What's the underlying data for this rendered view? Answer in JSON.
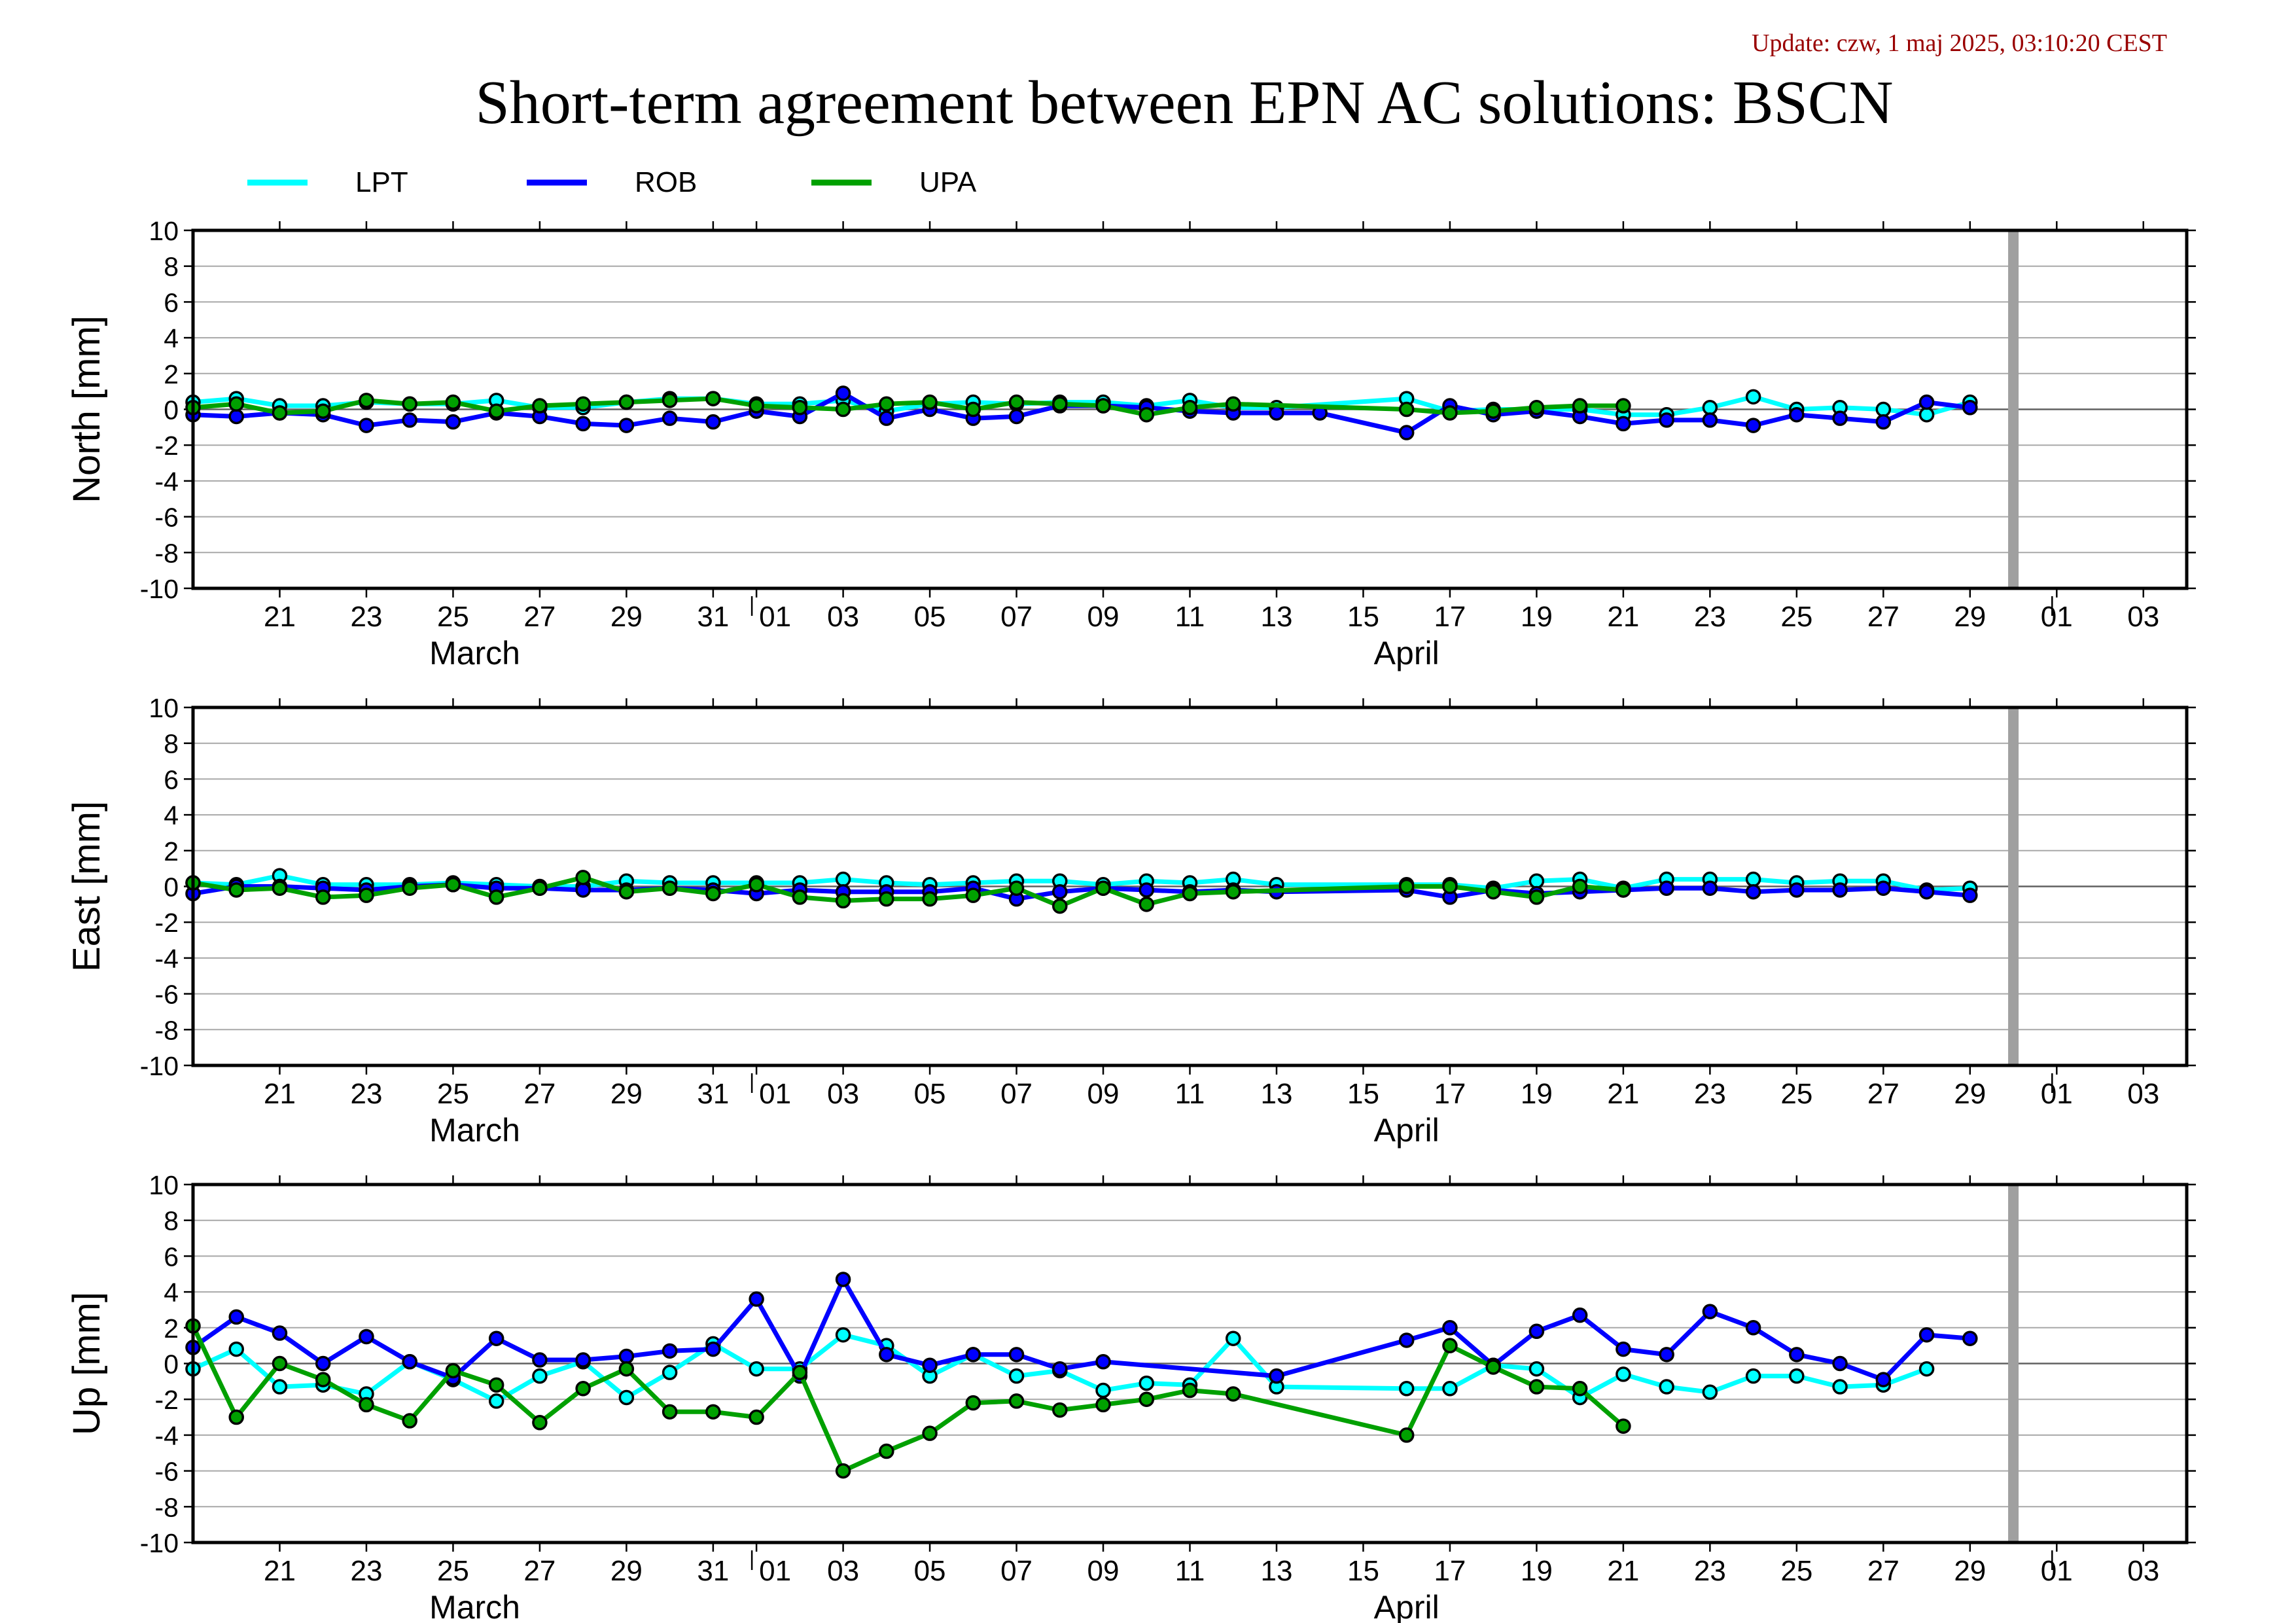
{
  "update_text": "Update: czw, 1 maj 2025, 03:10:20 CEST",
  "title": "Short-term agreement between EPN AC solutions: BSCN",
  "colors": {
    "LPT": "#00ffff",
    "ROB": "#0000ff",
    "UPA": "#00a000",
    "current_day_marker": "#a0a0a0",
    "update_text": "#990000"
  },
  "chart_data": {
    "type": "line",
    "legend": {
      "placement": "top-left",
      "entries": [
        "LPT",
        "ROB",
        "UPA"
      ]
    },
    "x_axis": {
      "range": [
        "2025-03-19",
        "2025-05-04"
      ],
      "tick_dates": [
        "2025-03-21",
        "2025-03-23",
        "2025-03-25",
        "2025-03-27",
        "2025-03-29",
        "2025-03-31",
        "2025-04-01",
        "2025-04-03",
        "2025-04-05",
        "2025-04-07",
        "2025-04-09",
        "2025-04-11",
        "2025-04-13",
        "2025-04-15",
        "2025-04-17",
        "2025-04-19",
        "2025-04-21",
        "2025-04-23",
        "2025-04-25",
        "2025-04-27",
        "2025-04-29",
        "2025-05-01",
        "2025-05-03"
      ],
      "tick_labels": [
        "21",
        "23",
        "25",
        "27",
        "29",
        "31",
        "01",
        "03",
        "05",
        "07",
        "09",
        "11",
        "13",
        "15",
        "17",
        "19",
        "21",
        "23",
        "25",
        "27",
        "29",
        "01",
        "03"
      ],
      "month_boundaries": [
        "2025-04-01",
        "2025-05-01"
      ],
      "month_labels": [
        {
          "text": "March",
          "date": "2025-03-25T12:00"
        },
        {
          "text": "April",
          "date": "2025-04-16"
        }
      ],
      "current_day_marker": "2025-04-30"
    },
    "dates": [
      "2025-03-19",
      "2025-03-20",
      "2025-03-21",
      "2025-03-22",
      "2025-03-23",
      "2025-03-24",
      "2025-03-25",
      "2025-03-26",
      "2025-03-27",
      "2025-03-28",
      "2025-03-29",
      "2025-03-30",
      "2025-03-31",
      "2025-04-01",
      "2025-04-02",
      "2025-04-03",
      "2025-04-04",
      "2025-04-05",
      "2025-04-06",
      "2025-04-07",
      "2025-04-08",
      "2025-04-09",
      "2025-04-10",
      "2025-04-11",
      "2025-04-12",
      "2025-04-13",
      "2025-04-14",
      "2025-04-15",
      "2025-04-16",
      "2025-04-17",
      "2025-04-18",
      "2025-04-19",
      "2025-04-20",
      "2025-04-21",
      "2025-04-22",
      "2025-04-23",
      "2025-04-24",
      "2025-04-25",
      "2025-04-26",
      "2025-04-27",
      "2025-04-28",
      "2025-04-29"
    ],
    "panels": [
      {
        "ylabel": "North [mm]",
        "ylim": [
          -10,
          10
        ],
        "yticks": [
          10,
          8,
          6,
          4,
          2,
          0,
          -2,
          -4,
          -6,
          -8,
          -10
        ],
        "series": [
          {
            "name": "LPT",
            "values": [
              0.4,
              0.6,
              0.2,
              0.2,
              0.4,
              0.3,
              0.3,
              0.5,
              0.1,
              0.1,
              0.4,
              0.6,
              0.6,
              0.3,
              0.3,
              0.5,
              -0.1,
              0.3,
              0.4,
              0.3,
              0.4,
              0.4,
              0.2,
              0.5,
              0.1,
              0.1,
              null,
              null,
              0.6,
              -0.1,
              0.0,
              0.0,
              0.0,
              -0.3,
              -0.3,
              0.1,
              0.7,
              0.0,
              0.1,
              0.0,
              -0.3,
              0.4
            ]
          },
          {
            "name": "ROB",
            "values": [
              -0.3,
              -0.4,
              -0.2,
              -0.3,
              -0.9,
              -0.6,
              -0.7,
              -0.2,
              -0.4,
              -0.8,
              -0.9,
              -0.5,
              -0.7,
              -0.1,
              -0.4,
              0.9,
              -0.5,
              0.0,
              -0.5,
              -0.4,
              0.2,
              0.2,
              0.1,
              -0.1,
              -0.2,
              -0.2,
              -0.2,
              null,
              -1.3,
              0.2,
              -0.3,
              -0.1,
              -0.4,
              -0.8,
              -0.6,
              -0.6,
              -0.9,
              -0.3,
              -0.5,
              -0.7,
              0.4,
              0.1
            ]
          },
          {
            "name": "UPA",
            "values": [
              0.1,
              0.3,
              -0.2,
              -0.1,
              0.5,
              0.3,
              0.4,
              -0.1,
              0.2,
              0.3,
              0.4,
              0.5,
              0.6,
              0.2,
              0.1,
              0.0,
              0.3,
              0.4,
              0.0,
              0.4,
              0.3,
              0.2,
              -0.3,
              0.1,
              0.3,
              null,
              null,
              null,
              0.0,
              -0.2,
              -0.1,
              0.1,
              0.2,
              0.2,
              null,
              null,
              null,
              null,
              null,
              null,
              null,
              null
            ]
          }
        ]
      },
      {
        "ylabel": "East [mm]",
        "ylim": [
          -10,
          10
        ],
        "yticks": [
          10,
          8,
          6,
          4,
          2,
          0,
          -2,
          -4,
          -6,
          -8,
          -10
        ],
        "series": [
          {
            "name": "LPT",
            "values": [
              0.2,
              0.1,
              0.6,
              0.1,
              0.1,
              0.1,
              0.2,
              0.1,
              0.0,
              0.0,
              0.3,
              0.2,
              0.2,
              0.2,
              0.2,
              0.4,
              0.2,
              0.1,
              0.2,
              0.3,
              0.3,
              0.1,
              0.3,
              0.2,
              0.4,
              0.1,
              null,
              null,
              0.1,
              0.1,
              -0.1,
              0.3,
              0.4,
              -0.1,
              0.4,
              0.4,
              0.4,
              0.2,
              0.3,
              0.3,
              -0.2,
              -0.1
            ]
          },
          {
            "name": "ROB",
            "values": [
              -0.4,
              0.0,
              0.0,
              -0.1,
              -0.2,
              0.0,
              0.1,
              -0.1,
              -0.1,
              -0.2,
              -0.2,
              -0.1,
              -0.2,
              -0.4,
              -0.2,
              -0.3,
              -0.3,
              -0.3,
              -0.1,
              -0.7,
              -0.3,
              -0.1,
              -0.2,
              -0.3,
              -0.2,
              -0.3,
              null,
              null,
              -0.2,
              -0.6,
              -0.2,
              -0.4,
              -0.3,
              -0.2,
              -0.1,
              -0.1,
              -0.3,
              -0.2,
              -0.2,
              -0.1,
              -0.3,
              -0.5
            ]
          },
          {
            "name": "UPA",
            "values": [
              0.2,
              -0.2,
              -0.1,
              -0.6,
              -0.5,
              -0.1,
              0.1,
              -0.6,
              -0.1,
              0.5,
              -0.3,
              -0.1,
              -0.4,
              0.1,
              -0.6,
              -0.8,
              -0.7,
              -0.7,
              -0.5,
              -0.1,
              -1.1,
              -0.1,
              -1.0,
              -0.4,
              -0.3,
              null,
              null,
              null,
              0.0,
              0.0,
              -0.3,
              -0.6,
              0.0,
              -0.2,
              null,
              null,
              null,
              null,
              null,
              null,
              null,
              null
            ]
          }
        ]
      },
      {
        "ylabel": "Up [mm]",
        "ylim": [
          -10,
          10
        ],
        "yticks": [
          10,
          8,
          6,
          4,
          2,
          0,
          -2,
          -4,
          -6,
          -8,
          -10
        ],
        "series": [
          {
            "name": "LPT",
            "values": [
              -0.3,
              0.8,
              -1.3,
              -1.2,
              -1.7,
              0.1,
              -0.9,
              -2.1,
              -0.7,
              0.1,
              -1.9,
              -0.5,
              1.1,
              -0.3,
              -0.3,
              1.6,
              1.0,
              -0.7,
              0.5,
              -0.7,
              -0.4,
              -1.5,
              -1.1,
              -1.2,
              1.4,
              -1.3,
              null,
              null,
              -1.4,
              -1.4,
              -0.1,
              -0.3,
              -1.9,
              -0.6,
              -1.3,
              -1.6,
              -0.7,
              -0.7,
              -1.3,
              -1.2,
              -0.3,
              null
            ]
          },
          {
            "name": "ROB",
            "values": [
              0.9,
              2.6,
              1.7,
              0.0,
              1.5,
              0.1,
              -0.8,
              1.4,
              0.2,
              0.2,
              0.4,
              0.7,
              0.8,
              3.6,
              -0.7,
              4.7,
              0.5,
              -0.1,
              0.5,
              0.5,
              -0.3,
              0.1,
              null,
              null,
              null,
              -0.7,
              null,
              null,
              1.3,
              2.0,
              -0.1,
              1.8,
              2.7,
              0.8,
              0.5,
              2.9,
              2.0,
              0.5,
              0.0,
              -0.9,
              1.6,
              1.4
            ]
          },
          {
            "name": "UPA",
            "values": [
              2.1,
              -3.0,
              0.0,
              -0.9,
              -2.3,
              -3.2,
              -0.4,
              -1.2,
              -3.3,
              -1.4,
              -0.3,
              -2.7,
              -2.7,
              -3.0,
              -0.5,
              -6.0,
              -4.9,
              -3.9,
              -2.2,
              -2.1,
              -2.6,
              -2.3,
              -2.0,
              -1.5,
              -1.7,
              null,
              null,
              null,
              -4.0,
              1.0,
              -0.2,
              -1.3,
              -1.4,
              -3.5,
              null,
              null,
              null,
              null,
              null,
              null,
              null,
              null
            ]
          }
        ]
      }
    ]
  }
}
